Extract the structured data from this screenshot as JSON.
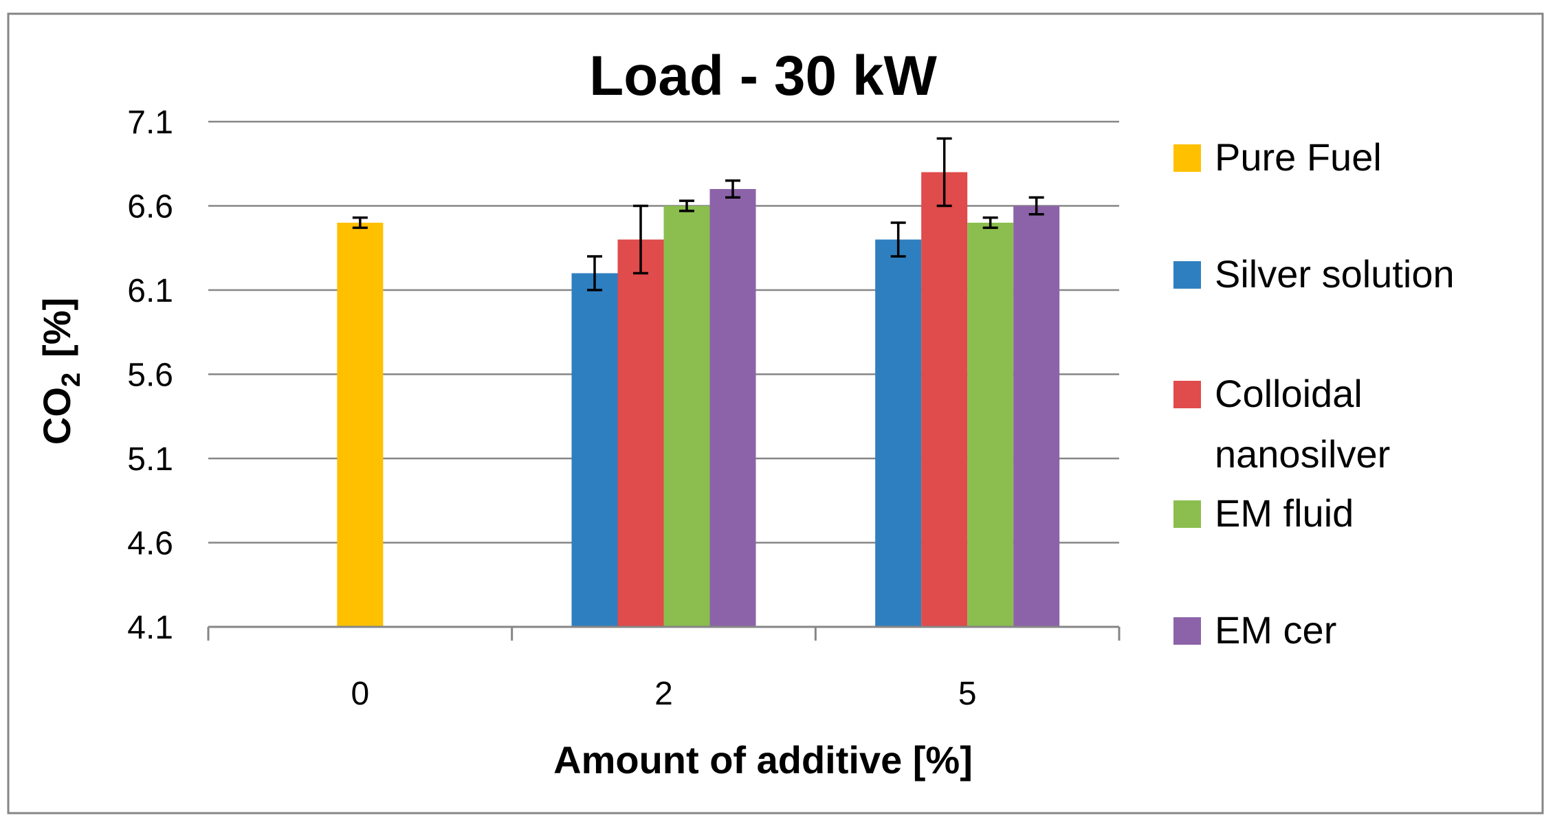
{
  "chart_data": {
    "type": "bar",
    "title": "Load - 30 kW",
    "xlabel": "Amount of additive [%]",
    "ylabel": "CO",
    "ylabel_subscript": "2",
    "ylabel_unit": "[%]",
    "ylim": [
      4.1,
      7.1
    ],
    "yticks": [
      4.1,
      4.6,
      5.1,
      5.6,
      6.1,
      6.6,
      7.1
    ],
    "ytick_labels": [
      "4.1",
      "4.6",
      "5.1",
      "5.6",
      "6.1",
      "6.6",
      "7.1"
    ],
    "categories": [
      "0",
      "2",
      "5"
    ],
    "grid": true,
    "legend_position": "right",
    "series": [
      {
        "name": "Pure Fuel",
        "color": "#FFC000",
        "values": [
          6.5,
          null,
          null
        ],
        "errors": [
          0.03,
          null,
          null
        ]
      },
      {
        "name": "Silver solution",
        "color": "#2E7FC0",
        "values": [
          null,
          6.2,
          6.4
        ],
        "errors": [
          null,
          0.1,
          0.1
        ]
      },
      {
        "name": "Colloidal nanosilver",
        "color": "#E04B4B",
        "values": [
          null,
          6.4,
          6.8
        ],
        "errors": [
          null,
          0.2,
          0.2
        ]
      },
      {
        "name": "EM fluid",
        "color": "#8BBE4E",
        "values": [
          null,
          6.6,
          6.5
        ],
        "errors": [
          null,
          0.03,
          0.03
        ]
      },
      {
        "name": "EM cer",
        "color": "#8C63A8",
        "values": [
          null,
          6.7,
          6.6
        ],
        "errors": [
          null,
          0.05,
          0.05
        ]
      }
    ],
    "legend_lines": [
      {
        "series": 0,
        "lines": [
          "Pure Fuel"
        ]
      },
      {
        "series": 1,
        "lines": [
          "Silver solution"
        ]
      },
      {
        "series": 2,
        "lines": [
          "Colloidal",
          "nanosilver"
        ]
      },
      {
        "series": 3,
        "lines": [
          "EM fluid"
        ]
      },
      {
        "series": 4,
        "lines": [
          "EM cer"
        ]
      }
    ]
  }
}
